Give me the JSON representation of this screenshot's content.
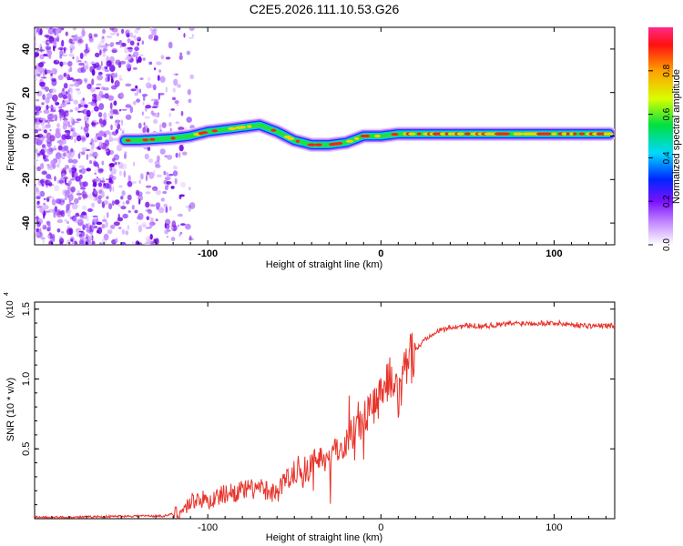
{
  "chart_data": [
    {
      "type": "heatmap",
      "title": "C2E5.2026.111.10.53.G26",
      "xlabel": "Height of straight line (km)",
      "ylabel": "Frequency (Hz)",
      "xlim": [
        -200,
        135
      ],
      "ylim": [
        -50,
        50
      ],
      "xticks": [
        -100,
        0,
        100
      ],
      "yticks": [
        -40,
        -20,
        0,
        20,
        40
      ],
      "frequency_track": {
        "x": [
          -148,
          -140,
          -130,
          -120,
          -110,
          -100,
          -90,
          -80,
          -70,
          -60,
          -50,
          -40,
          -30,
          -20,
          -10,
          0,
          10,
          20,
          40,
          60,
          80,
          100,
          120,
          133
        ],
        "y": [
          -2,
          -2,
          -1.5,
          -1,
          0,
          2,
          3,
          4,
          5,
          2,
          -2,
          -4,
          -4,
          -3,
          0,
          0,
          1,
          1,
          1,
          1,
          1,
          1,
          1,
          1
        ]
      },
      "colorbar": {
        "label": "Normalized spectral amplitude",
        "ticks": [
          "0.0",
          "0.2",
          "0.4",
          "0.6",
          "0.8"
        ],
        "range": [
          0,
          1
        ]
      }
    },
    {
      "type": "line",
      "xlabel": "Height of straight line (km)",
      "ylabel": "SNR (10 * v/v)",
      "scale_label": "(x10",
      "scale_exp": "4",
      "ylim": [
        0,
        1.55
      ],
      "xlim": [
        -200,
        135
      ],
      "xticks": [
        -100,
        0,
        100
      ],
      "yticks": [
        "0.5",
        "1.0",
        "1.5"
      ],
      "color": "#e8332a",
      "series": [
        {
          "name": "SNR",
          "x": [
            -200,
            -180,
            -160,
            -140,
            -125,
            -115,
            -110,
            -105,
            -100,
            -90,
            -80,
            -70,
            -60,
            -55,
            -50,
            -45,
            -40,
            -35,
            -30,
            -25,
            -20,
            -15,
            -10,
            -5,
            0,
            5,
            10,
            15,
            20,
            25,
            30,
            40,
            50,
            60,
            70,
            80,
            90,
            100,
            110,
            120,
            133
          ],
          "y": [
            0.01,
            0.01,
            0.015,
            0.02,
            0.02,
            0.05,
            0.12,
            0.15,
            0.12,
            0.18,
            0.2,
            0.22,
            0.18,
            0.28,
            0.35,
            0.3,
            0.4,
            0.45,
            0.42,
            0.5,
            0.55,
            0.65,
            0.72,
            0.8,
            0.9,
            1.0,
            0.85,
            1.1,
            1.2,
            1.28,
            1.33,
            1.37,
            1.38,
            1.38,
            1.39,
            1.4,
            1.4,
            1.4,
            1.39,
            1.38,
            1.38
          ]
        }
      ]
    }
  ]
}
